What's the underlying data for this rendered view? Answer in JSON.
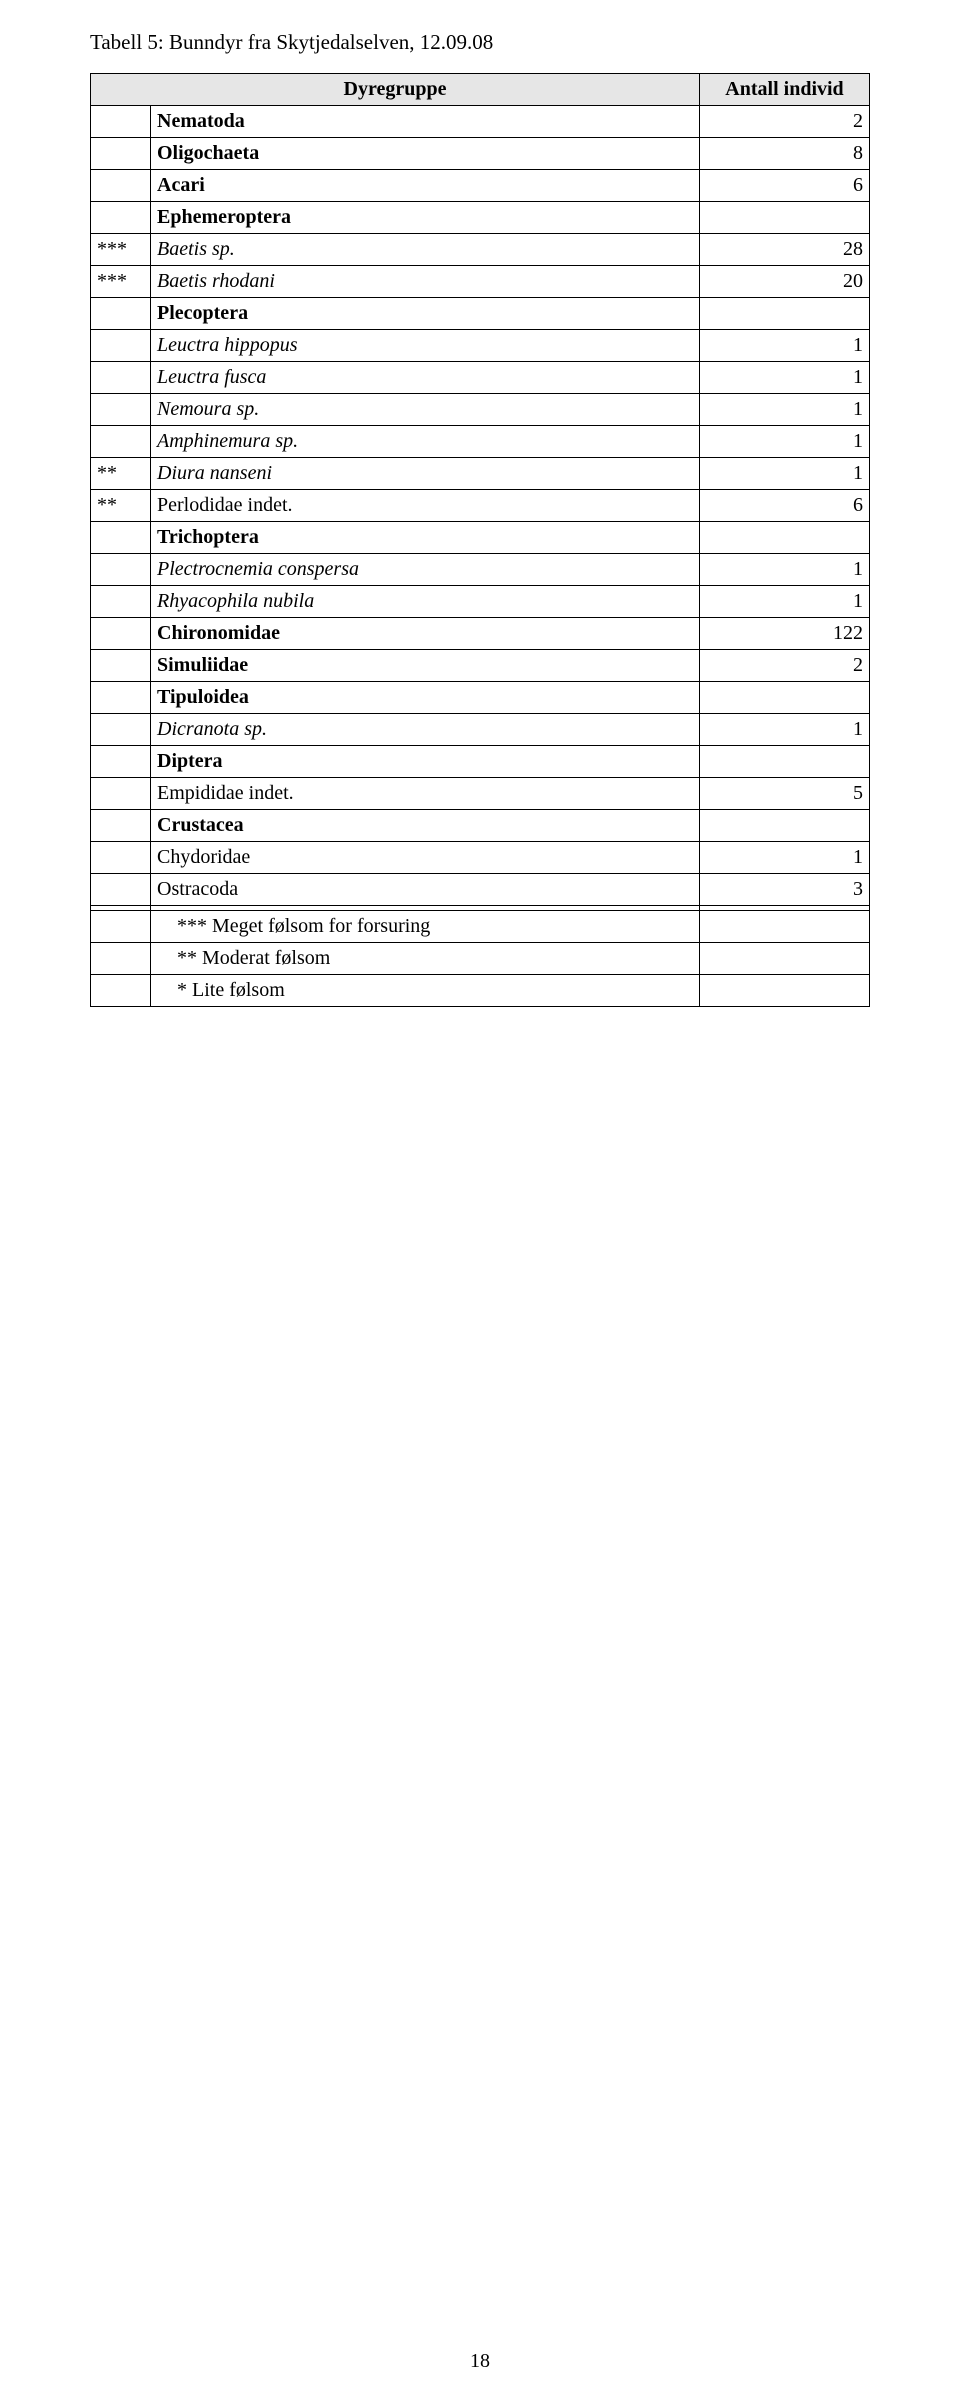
{
  "title": "Tabell 5: Bunndyr fra Skytjedalselven, 12.09.08",
  "header": {
    "col1": "Dyregruppe",
    "col2": "Antall individ"
  },
  "rows": [
    {
      "mark": "",
      "name": "Nematoda",
      "value": "2",
      "bold": true,
      "italic": false
    },
    {
      "mark": "",
      "name": "Oligochaeta",
      "value": "8",
      "bold": true,
      "italic": false
    },
    {
      "mark": "",
      "name": "Acari",
      "value": "6",
      "bold": true,
      "italic": false
    },
    {
      "mark": "",
      "name": "Ephemeroptera",
      "value": "",
      "bold": true,
      "italic": false
    },
    {
      "mark": "***",
      "name": "Baetis sp.",
      "value": "28",
      "bold": false,
      "italic": true
    },
    {
      "mark": "***",
      "name": "Baetis rhodani",
      "value": "20",
      "bold": false,
      "italic": true
    },
    {
      "mark": "",
      "name": "Plecoptera",
      "value": "",
      "bold": true,
      "italic": false
    },
    {
      "mark": "",
      "name": "Leuctra hippopus",
      "value": "1",
      "bold": false,
      "italic": true
    },
    {
      "mark": "",
      "name": "Leuctra fusca",
      "value": "1",
      "bold": false,
      "italic": true
    },
    {
      "mark": "",
      "name": "Nemoura sp.",
      "value": "1",
      "bold": false,
      "italic": true
    },
    {
      "mark": "",
      "name": "Amphinemura sp.",
      "value": "1",
      "bold": false,
      "italic": true
    },
    {
      "mark": "**",
      "name": "Diura nanseni",
      "value": "1",
      "bold": false,
      "italic": true
    },
    {
      "mark": "**",
      "name": "Perlodidae indet.",
      "value": "6",
      "bold": false,
      "italic": false
    },
    {
      "mark": "",
      "name": "Trichoptera",
      "value": "",
      "bold": true,
      "italic": false
    },
    {
      "mark": "",
      "name": "Plectrocnemia conspersa",
      "value": "1",
      "bold": false,
      "italic": true
    },
    {
      "mark": "",
      "name": "Rhyacophila nubila",
      "value": "1",
      "bold": false,
      "italic": true
    },
    {
      "mark": "",
      "name": "Chironomidae",
      "value": "122",
      "bold": true,
      "italic": false
    },
    {
      "mark": "",
      "name": "Simuliidae",
      "value": "2",
      "bold": true,
      "italic": false
    },
    {
      "mark": "",
      "name": "Tipuloidea",
      "value": "",
      "bold": true,
      "italic": false
    },
    {
      "mark": "",
      "name": "Dicranota sp.",
      "value": "1",
      "bold": false,
      "italic": true
    },
    {
      "mark": "",
      "name": "Diptera",
      "value": "",
      "bold": true,
      "italic": false
    },
    {
      "mark": "",
      "name": "Empididae indet.",
      "value": "5",
      "bold": false,
      "italic": false
    },
    {
      "mark": "",
      "name": "Crustacea",
      "value": "",
      "bold": true,
      "italic": false
    },
    {
      "mark": "",
      "name": "Chydoridae",
      "value": "1",
      "bold": false,
      "italic": false
    },
    {
      "mark": "",
      "name": "Ostracoda",
      "value": "3",
      "bold": false,
      "italic": false
    },
    {
      "mark": "",
      "name": "",
      "value": "",
      "bold": false,
      "italic": false
    },
    {
      "mark": "",
      "name": "*** Meget følsom for forsuring",
      "value": "",
      "bold": false,
      "italic": false,
      "indent": true
    },
    {
      "mark": "",
      "name": "** Moderat følsom",
      "value": "",
      "bold": false,
      "italic": false,
      "indent": true
    },
    {
      "mark": "",
      "name": "* Lite følsom",
      "value": "",
      "bold": false,
      "italic": false,
      "indent": true
    }
  ],
  "pageNumber": "18",
  "colors": {
    "headerBg": "#e6e6e6",
    "border": "#000000",
    "text": "#000000",
    "pageBg": "#ffffff"
  }
}
